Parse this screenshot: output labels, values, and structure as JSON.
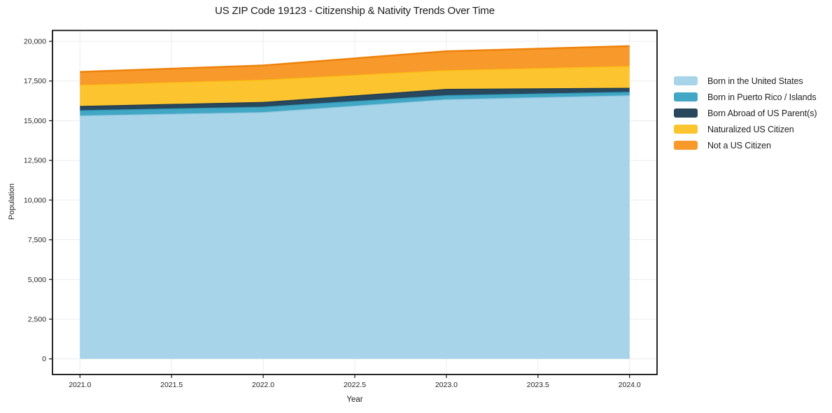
{
  "chart_data": {
    "type": "area",
    "stacked": true,
    "title": "US ZIP Code 19123 - Citizenship & Nativity Trends Over Time",
    "xlabel": "Year",
    "ylabel": "Population",
    "x": [
      2021,
      2022,
      2023,
      2024
    ],
    "series": [
      {
        "name": "Born in the United States",
        "values": [
          15330,
          15540,
          16350,
          16600
        ],
        "fill": "#a7d4e9",
        "edge": "#90c8e0"
      },
      {
        "name": "Born in Puerto Rico / Islands",
        "values": [
          330,
          340,
          255,
          220
        ],
        "fill": "#42a7c4",
        "edge": "#2e9cba"
      },
      {
        "name": "Born Abroad of US Parent(s)",
        "values": [
          270,
          300,
          400,
          250
        ],
        "fill": "#29485e",
        "edge": "#1e3a4d"
      },
      {
        "name": "Naturalized US Citizen",
        "values": [
          1330,
          1410,
          1180,
          1380
        ],
        "fill": "#fcc52f",
        "edge": "#fbbb0e"
      },
      {
        "name": "Not a US Citizen",
        "values": [
          815,
          890,
          1190,
          1250
        ],
        "fill": "#f8992c",
        "edge": "#ee820a"
      }
    ],
    "stacked_totals": [
      18075,
      18480,
      19375,
      19700
    ],
    "xticks": [
      2021.0,
      2021.5,
      2022.0,
      2022.5,
      2023.0,
      2023.5,
      2024.0
    ],
    "xtick_labels": [
      "2021.0",
      "2021.5",
      "2022.0",
      "2022.5",
      "2023.0",
      "2023.5",
      "2024.0"
    ],
    "yticks": [
      0,
      2500,
      5000,
      7500,
      10000,
      12500,
      15000,
      17500,
      20000
    ],
    "ytick_labels": [
      "0",
      "2,500",
      "5,000",
      "7,500",
      "10,000",
      "12,500",
      "15,000",
      "17,500",
      "20,000"
    ],
    "xlim": [
      2020.85,
      2024.15
    ],
    "ylim": [
      -985,
      20685
    ],
    "grid": true,
    "grid_color": "#ececec",
    "spine_color": "#111111",
    "tick_label_color": "#262626",
    "legend_position": "right-of-plot"
  }
}
